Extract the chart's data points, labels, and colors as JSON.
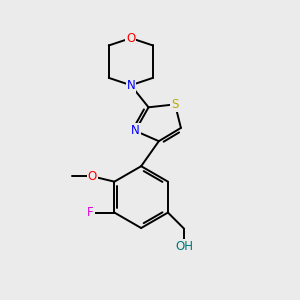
{
  "background_color": "#ebebeb",
  "bond_color": "#000000",
  "colors": {
    "O": "#ff0000",
    "N": "#0000ff",
    "S": "#bbaa00",
    "F": "#dd00dd",
    "O_methoxy": "#ff0000",
    "O_hydroxyl": "#007777",
    "C": "#000000"
  },
  "font_size": 8.5
}
